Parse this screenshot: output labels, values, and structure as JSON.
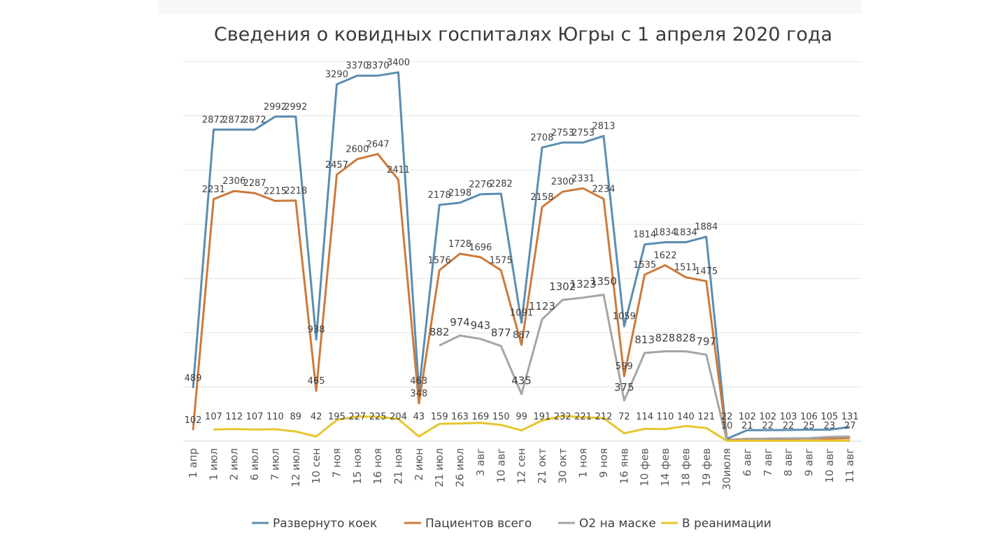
{
  "chart_data": {
    "type": "line",
    "title": "Сведения о ковидных госпиталях Югры с 1 апреля 2020 года",
    "xlabel": "",
    "ylabel": "",
    "ylim": [
      0,
      3500
    ],
    "grid": true,
    "legend_position": "bottom",
    "categories": [
      "1 апр",
      "1 июл",
      "2 июл",
      "6 июл",
      "7 июл",
      "12 июл",
      "10 сен",
      "7 ноя",
      "15 ноя",
      "16 ноя",
      "21 ноя",
      "2 июн",
      "21 июл",
      "26 июл",
      "3 авг",
      "10 авг",
      "12 сен",
      "21 окт",
      "30 окт",
      "1 ноя",
      "9 ноя",
      "16 янв",
      "10 фев",
      "14 фев",
      "18 фев",
      "19 фев",
      "30июля",
      "6 авг",
      "7 авг",
      "8 авг",
      "9 авг",
      "10 авг",
      "11 авг"
    ],
    "series": [
      {
        "name": "Развернуто коек",
        "color": "#5b8db0",
        "values": [
          489,
          2872,
          2872,
          2872,
          2992,
          2992,
          938,
          3290,
          3370,
          3370,
          3400,
          463,
          2178,
          2198,
          2276,
          2282,
          1091,
          2708,
          2753,
          2753,
          2813,
          1059,
          1814,
          1834,
          1834,
          1884,
          22,
          102,
          102,
          103,
          106,
          105,
          131
        ]
      },
      {
        "name": "Пациентов всего",
        "color": "#cc7a3c",
        "values": [
          102,
          2231,
          2306,
          2287,
          2215,
          2218,
          465,
          2457,
          2600,
          2647,
          2411,
          348,
          1576,
          1728,
          1696,
          1575,
          887,
          2158,
          2300,
          2331,
          2234,
          599,
          1535,
          1622,
          1511,
          1475,
          10,
          21,
          22,
          22,
          25,
          23,
          27
        ]
      },
      {
        "name": "О2 на маске",
        "color": "#a5a5a5",
        "values": [
          null,
          null,
          null,
          null,
          null,
          null,
          null,
          null,
          null,
          null,
          null,
          null,
          882,
          974,
          943,
          877,
          435,
          1123,
          1302,
          1323,
          1350,
          375,
          813,
          828,
          828,
          797,
          5,
          17,
          24,
          26,
          28,
          39,
          42
        ]
      },
      {
        "name": "В реанимации",
        "color": "#e6c52e",
        "values": [
          null,
          107,
          112,
          107,
          110,
          89,
          42,
          195,
          227,
          225,
          204,
          43,
          159,
          163,
          169,
          150,
          99,
          191,
          232,
          221,
          212,
          72,
          114,
          110,
          140,
          121,
          3,
          3,
          3,
          3,
          3,
          3,
          3
        ]
      }
    ],
    "data_labels": [
      {
        "series": 0,
        "index": 0,
        "text": "489"
      },
      {
        "series": 0,
        "index": 1,
        "text": "2872"
      },
      {
        "series": 0,
        "index": 2,
        "text": "2872"
      },
      {
        "series": 0,
        "index": 3,
        "text": "2872"
      },
      {
        "series": 0,
        "index": 4,
        "text": "2992"
      },
      {
        "series": 0,
        "index": 5,
        "text": "2992"
      },
      {
        "series": 0,
        "index": 6,
        "text": "938"
      },
      {
        "series": 0,
        "index": 7,
        "text": "3290"
      },
      {
        "series": 0,
        "index": 8,
        "text": "3370"
      },
      {
        "series": 0,
        "index": 9,
        "text": "3370"
      },
      {
        "series": 0,
        "index": 10,
        "text": "3400"
      },
      {
        "series": 0,
        "index": 11,
        "text": "463"
      },
      {
        "series": 0,
        "index": 12,
        "text": "2178"
      },
      {
        "series": 0,
        "index": 13,
        "text": "2198"
      },
      {
        "series": 0,
        "index": 14,
        "text": "2276"
      },
      {
        "series": 0,
        "index": 15,
        "text": "2282"
      },
      {
        "series": 0,
        "index": 16,
        "text": "1091"
      },
      {
        "series": 0,
        "index": 17,
        "text": "2708"
      },
      {
        "series": 0,
        "index": 18,
        "text": "2753"
      },
      {
        "series": 0,
        "index": 19,
        "text": "2753"
      },
      {
        "series": 0,
        "index": 20,
        "text": "2813"
      },
      {
        "series": 0,
        "index": 21,
        "text": "1059"
      },
      {
        "series": 0,
        "index": 22,
        "text": "1814"
      },
      {
        "series": 0,
        "index": 23,
        "text": "1834"
      },
      {
        "series": 0,
        "index": 24,
        "text": "1834"
      },
      {
        "series": 0,
        "index": 25,
        "text": "1884"
      },
      {
        "series": 0,
        "index": 26,
        "text": "22"
      },
      {
        "series": 0,
        "index": 27,
        "text": "102"
      },
      {
        "series": 0,
        "index": 28,
        "text": "102"
      },
      {
        "series": 0,
        "index": 29,
        "text": "103"
      },
      {
        "series": 0,
        "index": 30,
        "text": "106"
      },
      {
        "series": 0,
        "index": 31,
        "text": "105"
      },
      {
        "series": 0,
        "index": 32,
        "text": "131"
      },
      {
        "series": 1,
        "index": 0,
        "text": "102"
      },
      {
        "series": 1,
        "index": 1,
        "text": "2231"
      },
      {
        "series": 1,
        "index": 2,
        "text": "2306"
      },
      {
        "series": 1,
        "index": 3,
        "text": "2287"
      },
      {
        "series": 1,
        "index": 4,
        "text": "2215"
      },
      {
        "series": 1,
        "index": 5,
        "text": "2218"
      },
      {
        "series": 1,
        "index": 6,
        "text": "465"
      },
      {
        "series": 1,
        "index": 7,
        "text": "2457"
      },
      {
        "series": 1,
        "index": 8,
        "text": "2600"
      },
      {
        "series": 1,
        "index": 9,
        "text": "2647"
      },
      {
        "series": 1,
        "index": 10,
        "text": "2411"
      },
      {
        "series": 1,
        "index": 11,
        "text": "348"
      },
      {
        "series": 1,
        "index": 12,
        "text": "1576"
      },
      {
        "series": 1,
        "index": 13,
        "text": "1728"
      },
      {
        "series": 1,
        "index": 14,
        "text": "1696"
      },
      {
        "series": 1,
        "index": 15,
        "text": "1575"
      },
      {
        "series": 1,
        "index": 16,
        "text": "887"
      },
      {
        "series": 1,
        "index": 17,
        "text": "2158"
      },
      {
        "series": 1,
        "index": 18,
        "text": "2300"
      },
      {
        "series": 1,
        "index": 19,
        "text": "2331"
      },
      {
        "series": 1,
        "index": 20,
        "text": "2234"
      },
      {
        "series": 1,
        "index": 21,
        "text": "599"
      },
      {
        "series": 1,
        "index": 22,
        "text": "1535"
      },
      {
        "series": 1,
        "index": 23,
        "text": "1622"
      },
      {
        "series": 1,
        "index": 24,
        "text": "1511"
      },
      {
        "series": 1,
        "index": 25,
        "text": "1475"
      },
      {
        "series": 1,
        "index": 26,
        "text": "10"
      },
      {
        "series": 1,
        "index": 27,
        "text": "21"
      },
      {
        "series": 1,
        "index": 28,
        "text": "22"
      },
      {
        "series": 1,
        "index": 29,
        "text": "22"
      },
      {
        "series": 1,
        "index": 30,
        "text": "25"
      },
      {
        "series": 1,
        "index": 31,
        "text": "23"
      },
      {
        "series": 1,
        "index": 32,
        "text": "27"
      },
      {
        "series": 2,
        "index": 12,
        "text": "882"
      },
      {
        "series": 2,
        "index": 13,
        "text": "974"
      },
      {
        "series": 2,
        "index": 14,
        "text": "943"
      },
      {
        "series": 2,
        "index": 15,
        "text": "877"
      },
      {
        "series": 2,
        "index": 16,
        "text": "435"
      },
      {
        "series": 2,
        "index": 17,
        "text": "1123"
      },
      {
        "series": 2,
        "index": 18,
        "text": "1302"
      },
      {
        "series": 2,
        "index": 19,
        "text": "1323"
      },
      {
        "series": 2,
        "index": 20,
        "text": "1350"
      },
      {
        "series": 2,
        "index": 21,
        "text": "375"
      },
      {
        "series": 2,
        "index": 22,
        "text": "813"
      },
      {
        "series": 2,
        "index": 23,
        "text": "828"
      },
      {
        "series": 2,
        "index": 24,
        "text": "828"
      },
      {
        "series": 2,
        "index": 25,
        "text": "797"
      },
      {
        "series": 3,
        "index": 1,
        "text": "107"
      },
      {
        "series": 3,
        "index": 2,
        "text": "112"
      },
      {
        "series": 3,
        "index": 3,
        "text": "107"
      },
      {
        "series": 3,
        "index": 4,
        "text": "110"
      },
      {
        "series": 3,
        "index": 5,
        "text": "89"
      },
      {
        "series": 3,
        "index": 6,
        "text": "42"
      },
      {
        "series": 3,
        "index": 7,
        "text": "195"
      },
      {
        "series": 3,
        "index": 8,
        "text": "227"
      },
      {
        "series": 3,
        "index": 9,
        "text": "225"
      },
      {
        "series": 3,
        "index": 10,
        "text": "204"
      },
      {
        "series": 3,
        "index": 11,
        "text": "43"
      },
      {
        "series": 3,
        "index": 12,
        "text": "159"
      },
      {
        "series": 3,
        "index": 13,
        "text": "163"
      },
      {
        "series": 3,
        "index": 14,
        "text": "169"
      },
      {
        "series": 3,
        "index": 15,
        "text": "150"
      },
      {
        "series": 3,
        "index": 16,
        "text": "99"
      },
      {
        "series": 3,
        "index": 17,
        "text": "191"
      },
      {
        "series": 3,
        "index": 18,
        "text": "232"
      },
      {
        "series": 3,
        "index": 19,
        "text": "221"
      },
      {
        "series": 3,
        "index": 20,
        "text": "212"
      },
      {
        "series": 3,
        "index": 21,
        "text": "72"
      },
      {
        "series": 3,
        "index": 22,
        "text": "114"
      },
      {
        "series": 3,
        "index": 23,
        "text": "110"
      },
      {
        "series": 3,
        "index": 24,
        "text": "140"
      },
      {
        "series": 3,
        "index": 25,
        "text": "121"
      }
    ]
  }
}
